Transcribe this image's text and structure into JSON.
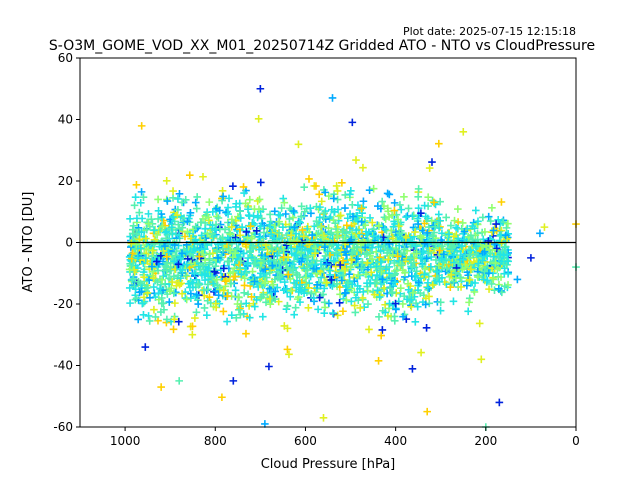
{
  "plot_date": "Plot date: 2025-07-15 12:15:18",
  "chart_data": {
    "type": "scatter",
    "title": "S-O3M_GOME_VOD_XX_M01_20250714Z Gridded ATO - NTO vs CloudPressure",
    "xlabel": "Cloud Pressure [hPa]",
    "ylabel": "ATO - NTO [DU]",
    "xlim": [
      1100,
      0
    ],
    "ylim": [
      -60,
      60
    ],
    "x_ticks": [
      1000,
      800,
      600,
      400,
      200,
      0
    ],
    "y_ticks": [
      -60,
      -40,
      -20,
      0,
      20,
      40,
      60
    ],
    "x_reversed": true,
    "marker": "+",
    "reference_line": {
      "y": 0,
      "color": "#000000"
    },
    "colors": [
      "#0022dd",
      "#00aaff",
      "#22e5e5",
      "#55f0b0",
      "#90ff70",
      "#e0f020",
      "#ffd000"
    ],
    "point_cloud": {
      "x_range": [
        990,
        150
      ],
      "core_y_range": [
        -25,
        20
      ],
      "extreme_y_range": [
        -60,
        50
      ],
      "description_counts": 2600
    },
    "outliers": [
      {
        "x": 700,
        "y": 50
      },
      {
        "x": 540,
        "y": 47
      },
      {
        "x": 250,
        "y": 36
      },
      {
        "x": 920,
        "y": -47
      },
      {
        "x": 880,
        "y": -45
      },
      {
        "x": 760,
        "y": -45
      },
      {
        "x": 690,
        "y": -59
      },
      {
        "x": 560,
        "y": -57
      },
      {
        "x": 330,
        "y": -55
      },
      {
        "x": 200,
        "y": -60
      },
      {
        "x": 170,
        "y": -52
      },
      {
        "x": 80,
        "y": 3
      },
      {
        "x": 70,
        "y": 5
      },
      {
        "x": 0,
        "y": 6
      },
      {
        "x": 0,
        "y": -8
      },
      {
        "x": 100,
        "y": -5
      },
      {
        "x": 130,
        "y": -12
      },
      {
        "x": 210,
        "y": -38
      }
    ]
  }
}
